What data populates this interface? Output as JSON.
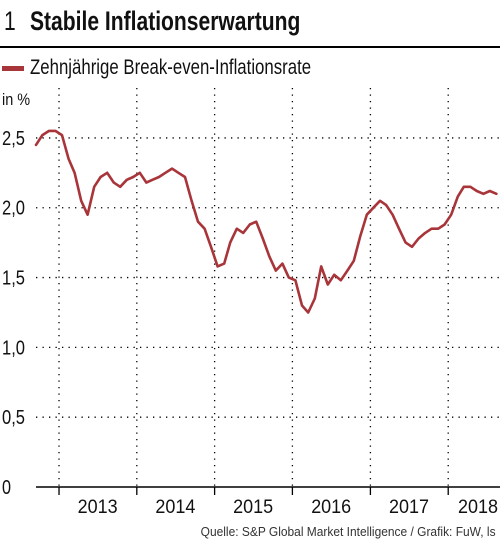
{
  "header": {
    "number": "1",
    "title": "Stabile Inflationserwartung"
  },
  "legend": {
    "label": "Zehnjährige Break-even-Inflationsrate"
  },
  "source": "Quelle: S&P Global Market Intelligence / Grafik: FuW, ls",
  "colors": {
    "series": "#a8353a",
    "grid": "#000000"
  },
  "chart_data": {
    "type": "line",
    "ylabel": "in %",
    "ylim": [
      0,
      2.7
    ],
    "xlim": [
      "2012-09-15",
      "2018-09-01"
    ],
    "yticks": [
      "0",
      "0,5",
      "1,0",
      "1,5",
      "2,0",
      "2,5"
    ],
    "yticks_values": [
      0,
      0.5,
      1.0,
      1.5,
      2.0,
      2.5
    ],
    "xtick_labels": [
      "2013",
      "2014",
      "2015",
      "2016",
      "2017",
      "2018"
    ],
    "grid": true,
    "series": [
      {
        "name": "Zehnjährige Break-even-Inflationsrate",
        "x": [
          "2012-09-15",
          "2012-10-15",
          "2012-11-15",
          "2012-12-15",
          "2013-01-15",
          "2013-02-15",
          "2013-03-15",
          "2013-04-15",
          "2013-05-15",
          "2013-06-15",
          "2013-07-15",
          "2013-08-15",
          "2013-09-15",
          "2013-10-15",
          "2013-11-15",
          "2013-12-15",
          "2014-01-15",
          "2014-02-15",
          "2014-03-15",
          "2014-04-15",
          "2014-05-15",
          "2014-06-15",
          "2014-07-15",
          "2014-08-15",
          "2014-09-15",
          "2014-10-15",
          "2014-11-15",
          "2014-12-15",
          "2015-01-15",
          "2015-02-15",
          "2015-03-15",
          "2015-04-15",
          "2015-05-15",
          "2015-06-15",
          "2015-07-15",
          "2015-08-15",
          "2015-09-15",
          "2015-10-15",
          "2015-11-15",
          "2015-12-15",
          "2016-01-15",
          "2016-02-15",
          "2016-03-15",
          "2016-04-15",
          "2016-05-15",
          "2016-06-15",
          "2016-07-15",
          "2016-08-15",
          "2016-09-15",
          "2016-10-15",
          "2016-11-15",
          "2016-12-15",
          "2017-01-15",
          "2017-02-15",
          "2017-03-15",
          "2017-04-15",
          "2017-05-15",
          "2017-06-15",
          "2017-07-15",
          "2017-08-15",
          "2017-09-15",
          "2017-10-15",
          "2017-11-15",
          "2017-12-15",
          "2018-01-15",
          "2018-02-15",
          "2018-03-15",
          "2018-04-15",
          "2018-05-15",
          "2018-06-15",
          "2018-07-15",
          "2018-08-15"
        ],
        "values": [
          2.45,
          2.52,
          2.55,
          2.55,
          2.52,
          2.35,
          2.25,
          2.05,
          1.95,
          2.15,
          2.22,
          2.25,
          2.18,
          2.15,
          2.2,
          2.22,
          2.25,
          2.18,
          2.2,
          2.22,
          2.25,
          2.28,
          2.25,
          2.22,
          2.05,
          1.9,
          1.85,
          1.72,
          1.58,
          1.6,
          1.75,
          1.85,
          1.82,
          1.88,
          1.9,
          1.78,
          1.65,
          1.55,
          1.6,
          1.5,
          1.48,
          1.3,
          1.25,
          1.35,
          1.58,
          1.45,
          1.52,
          1.48,
          1.55,
          1.62,
          1.8,
          1.95,
          2.0,
          2.05,
          2.02,
          1.95,
          1.85,
          1.75,
          1.72,
          1.78,
          1.82,
          1.85,
          1.85,
          1.88,
          1.95,
          2.08,
          2.15,
          2.15,
          2.12,
          2.1,
          2.12,
          2.1
        ]
      }
    ]
  }
}
